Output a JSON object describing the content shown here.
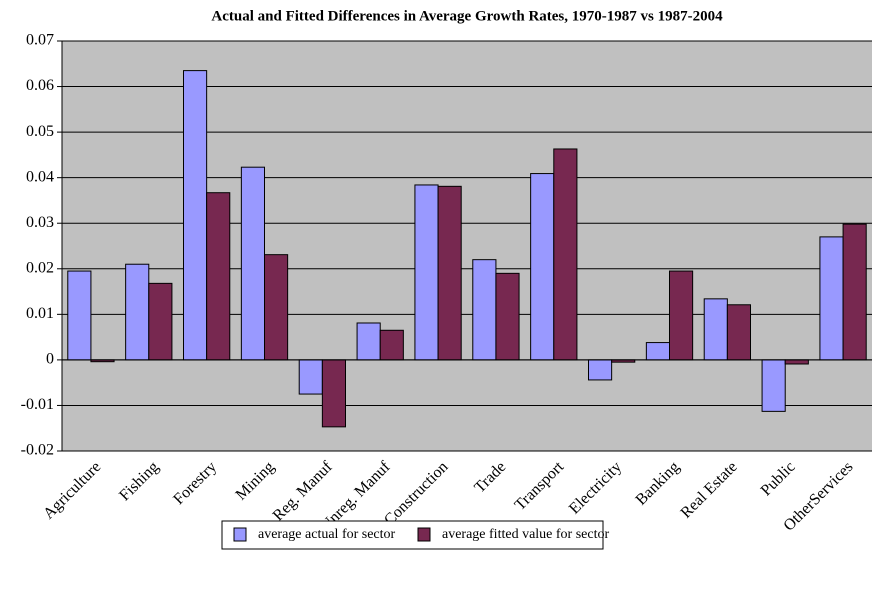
{
  "chart_data": {
    "type": "bar",
    "title": "Actual and Fitted Differences in Average Growth Rates, 1970-1987 vs 1987-2004",
    "categories": [
      "Agriculture",
      "Fishing",
      "Forestry",
      "Mining",
      "Reg. Manuf",
      "Unreg. Manuf",
      "Construction",
      "Trade",
      "Transport",
      "Electricity",
      "Banking",
      "Real Estate",
      "Public",
      "OtherServices"
    ],
    "series": [
      {
        "name": "average actual for sector",
        "color": "#9999ff",
        "values": [
          0.0195,
          0.021,
          0.0635,
          0.0423,
          -0.0075,
          0.0081,
          0.0384,
          0.022,
          0.0409,
          -0.0044,
          0.0038,
          0.0134,
          -0.0113,
          0.027
        ]
      },
      {
        "name": "average fitted value for sector",
        "color": "#772850",
        "values": [
          -0.0004,
          0.0168,
          0.0367,
          0.0231,
          -0.0147,
          0.0065,
          0.0381,
          0.019,
          0.0463,
          -0.0005,
          0.0195,
          0.0121,
          -0.0009,
          0.0298
        ]
      }
    ],
    "ylim": [
      -0.02,
      0.07
    ],
    "yticks": [
      -0.02,
      -0.01,
      0,
      0.01,
      0.02,
      0.03,
      0.04,
      0.05,
      0.06,
      0.07
    ],
    "grid": true,
    "plot_background": "#c0c0c0",
    "legend": "bottom"
  }
}
